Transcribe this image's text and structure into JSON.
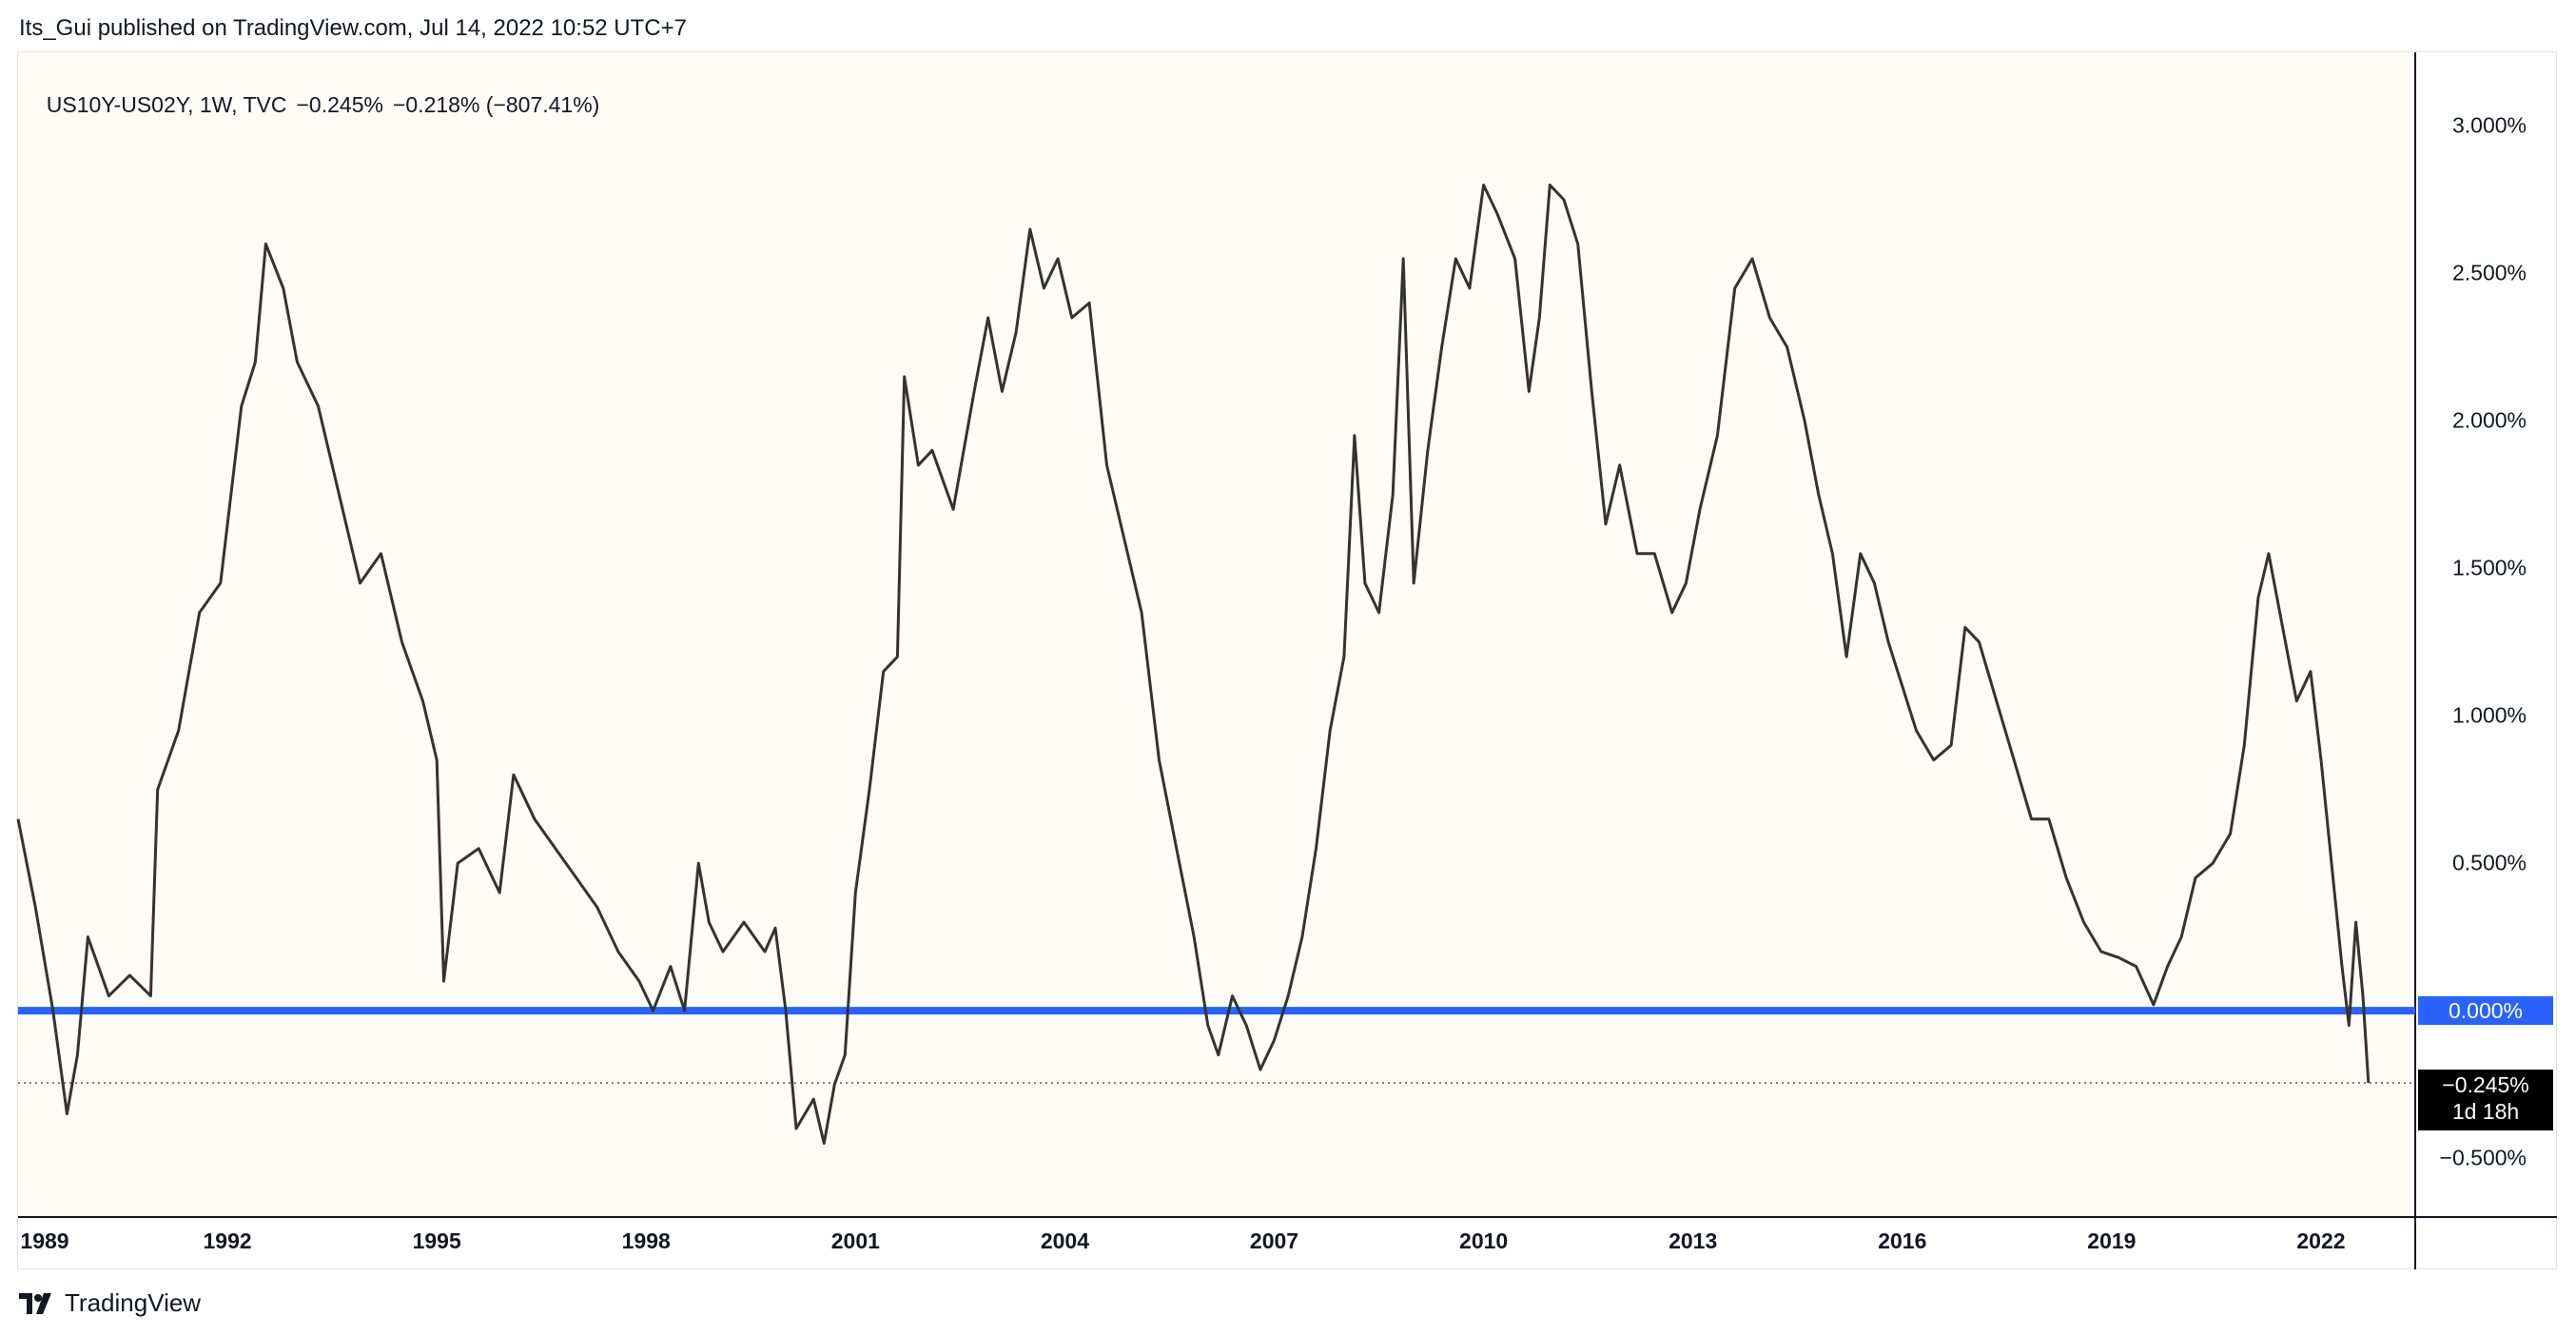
{
  "header": {
    "publish_line": "Its_Gui published on TradingView.com, Jul 14, 2022 10:52 UTC+7"
  },
  "legend": {
    "symbol": "US10Y-US02Y, 1W, TVC",
    "last": "−0.245%",
    "change": "−0.218% (−807.41%)"
  },
  "footer": {
    "brand": "TradingView",
    "logo_icon": "tradingview-logo-icon"
  },
  "colors": {
    "series": "#333333",
    "zero_line": "#2962ff",
    "last_badge": "#000000",
    "background": "#fffbf7"
  },
  "chart_data": {
    "type": "line",
    "title": "",
    "series_name": "US10Y-US02Y",
    "timeframe": "1W",
    "source": "TVC",
    "xlim": [
      1989.0,
      2023.35
    ],
    "ylim": [
      -0.7,
      3.25
    ],
    "x_ticks": [
      "1989",
      "1992",
      "1995",
      "1998",
      "2001",
      "2004",
      "2007",
      "2010",
      "2013",
      "2016",
      "2019",
      "2022"
    ],
    "y_ticks": [
      "3.000%",
      "2.500%",
      "2.000%",
      "1.500%",
      "1.000%",
      "0.500%",
      "0.000%",
      "−0.500%"
    ],
    "horizontal_line": {
      "value": 0.0,
      "label": "0.000%"
    },
    "last_value": {
      "value": -0.245,
      "label": "−0.245%",
      "countdown": "1d 18h"
    },
    "points": [
      [
        1989.0,
        0.65
      ],
      [
        1989.25,
        0.35
      ],
      [
        1989.5,
        0.0
      ],
      [
        1989.7,
        -0.35
      ],
      [
        1989.85,
        -0.15
      ],
      [
        1990.0,
        0.25
      ],
      [
        1990.3,
        0.05
      ],
      [
        1990.6,
        0.12
      ],
      [
        1990.9,
        0.05
      ],
      [
        1991.0,
        0.75
      ],
      [
        1991.3,
        0.95
      ],
      [
        1991.6,
        1.35
      ],
      [
        1991.9,
        1.45
      ],
      [
        1992.2,
        2.05
      ],
      [
        1992.4,
        2.2
      ],
      [
        1992.55,
        2.6
      ],
      [
        1992.8,
        2.45
      ],
      [
        1993.0,
        2.2
      ],
      [
        1993.3,
        2.05
      ],
      [
        1993.6,
        1.75
      ],
      [
        1993.9,
        1.45
      ],
      [
        1994.2,
        1.55
      ],
      [
        1994.5,
        1.25
      ],
      [
        1994.8,
        1.05
      ],
      [
        1995.0,
        0.85
      ],
      [
        1995.1,
        0.1
      ],
      [
        1995.3,
        0.5
      ],
      [
        1995.6,
        0.55
      ],
      [
        1995.9,
        0.4
      ],
      [
        1996.1,
        0.8
      ],
      [
        1996.4,
        0.65
      ],
      [
        1996.7,
        0.55
      ],
      [
        1997.0,
        0.45
      ],
      [
        1997.3,
        0.35
      ],
      [
        1997.6,
        0.2
      ],
      [
        1997.9,
        0.1
      ],
      [
        1998.1,
        0.0
      ],
      [
        1998.35,
        0.15
      ],
      [
        1998.55,
        0.0
      ],
      [
        1998.75,
        0.5
      ],
      [
        1998.9,
        0.3
      ],
      [
        1999.1,
        0.2
      ],
      [
        1999.4,
        0.3
      ],
      [
        1999.7,
        0.2
      ],
      [
        1999.85,
        0.28
      ],
      [
        2000.0,
        0.0
      ],
      [
        2000.15,
        -0.4
      ],
      [
        2000.4,
        -0.3
      ],
      [
        2000.55,
        -0.45
      ],
      [
        2000.7,
        -0.25
      ],
      [
        2000.85,
        -0.15
      ],
      [
        2001.0,
        0.4
      ],
      [
        2001.2,
        0.75
      ],
      [
        2001.4,
        1.15
      ],
      [
        2001.6,
        1.2
      ],
      [
        2001.7,
        2.15
      ],
      [
        2001.9,
        1.85
      ],
      [
        2002.1,
        1.9
      ],
      [
        2002.4,
        1.7
      ],
      [
        2002.7,
        2.1
      ],
      [
        2002.9,
        2.35
      ],
      [
        2003.1,
        2.1
      ],
      [
        2003.3,
        2.3
      ],
      [
        2003.5,
        2.65
      ],
      [
        2003.7,
        2.45
      ],
      [
        2003.9,
        2.55
      ],
      [
        2004.1,
        2.35
      ],
      [
        2004.35,
        2.4
      ],
      [
        2004.6,
        1.85
      ],
      [
        2004.85,
        1.6
      ],
      [
        2005.1,
        1.35
      ],
      [
        2005.35,
        0.85
      ],
      [
        2005.6,
        0.55
      ],
      [
        2005.85,
        0.25
      ],
      [
        2006.05,
        -0.05
      ],
      [
        2006.2,
        -0.15
      ],
      [
        2006.4,
        0.05
      ],
      [
        2006.6,
        -0.05
      ],
      [
        2006.8,
        -0.2
      ],
      [
        2007.0,
        -0.1
      ],
      [
        2007.2,
        0.05
      ],
      [
        2007.4,
        0.25
      ],
      [
        2007.6,
        0.55
      ],
      [
        2007.8,
        0.95
      ],
      [
        2008.0,
        1.2
      ],
      [
        2008.15,
        1.95
      ],
      [
        2008.3,
        1.45
      ],
      [
        2008.5,
        1.35
      ],
      [
        2008.7,
        1.75
      ],
      [
        2008.85,
        2.55
      ],
      [
        2009.0,
        1.45
      ],
      [
        2009.2,
        1.9
      ],
      [
        2009.4,
        2.25
      ],
      [
        2009.6,
        2.55
      ],
      [
        2009.8,
        2.45
      ],
      [
        2010.0,
        2.8
      ],
      [
        2010.2,
        2.7
      ],
      [
        2010.45,
        2.55
      ],
      [
        2010.65,
        2.1
      ],
      [
        2010.8,
        2.35
      ],
      [
        2010.95,
        2.8
      ],
      [
        2011.15,
        2.75
      ],
      [
        2011.35,
        2.6
      ],
      [
        2011.55,
        2.1
      ],
      [
        2011.75,
        1.65
      ],
      [
        2011.95,
        1.85
      ],
      [
        2012.2,
        1.55
      ],
      [
        2012.45,
        1.55
      ],
      [
        2012.7,
        1.35
      ],
      [
        2012.9,
        1.45
      ],
      [
        2013.1,
        1.7
      ],
      [
        2013.35,
        1.95
      ],
      [
        2013.6,
        2.45
      ],
      [
        2013.85,
        2.55
      ],
      [
        2014.1,
        2.35
      ],
      [
        2014.35,
        2.25
      ],
      [
        2014.6,
        2.0
      ],
      [
        2014.8,
        1.75
      ],
      [
        2015.0,
        1.55
      ],
      [
        2015.2,
        1.2
      ],
      [
        2015.4,
        1.55
      ],
      [
        2015.6,
        1.45
      ],
      [
        2015.8,
        1.25
      ],
      [
        2016.0,
        1.1
      ],
      [
        2016.2,
        0.95
      ],
      [
        2016.45,
        0.85
      ],
      [
        2016.7,
        0.9
      ],
      [
        2016.9,
        1.3
      ],
      [
        2017.1,
        1.25
      ],
      [
        2017.35,
        1.05
      ],
      [
        2017.6,
        0.85
      ],
      [
        2017.85,
        0.65
      ],
      [
        2018.1,
        0.65
      ],
      [
        2018.35,
        0.45
      ],
      [
        2018.6,
        0.3
      ],
      [
        2018.85,
        0.2
      ],
      [
        2019.1,
        0.18
      ],
      [
        2019.35,
        0.15
      ],
      [
        2019.6,
        0.02
      ],
      [
        2019.8,
        0.15
      ],
      [
        2020.0,
        0.25
      ],
      [
        2020.2,
        0.45
      ],
      [
        2020.45,
        0.5
      ],
      [
        2020.7,
        0.6
      ],
      [
        2020.9,
        0.9
      ],
      [
        2021.1,
        1.4
      ],
      [
        2021.25,
        1.55
      ],
      [
        2021.45,
        1.3
      ],
      [
        2021.65,
        1.05
      ],
      [
        2021.85,
        1.15
      ],
      [
        2022.0,
        0.85
      ],
      [
        2022.15,
        0.5
      ],
      [
        2022.3,
        0.15
      ],
      [
        2022.4,
        -0.05
      ],
      [
        2022.5,
        0.3
      ],
      [
        2022.6,
        0.05
      ],
      [
        2022.68,
        -0.245
      ]
    ]
  }
}
